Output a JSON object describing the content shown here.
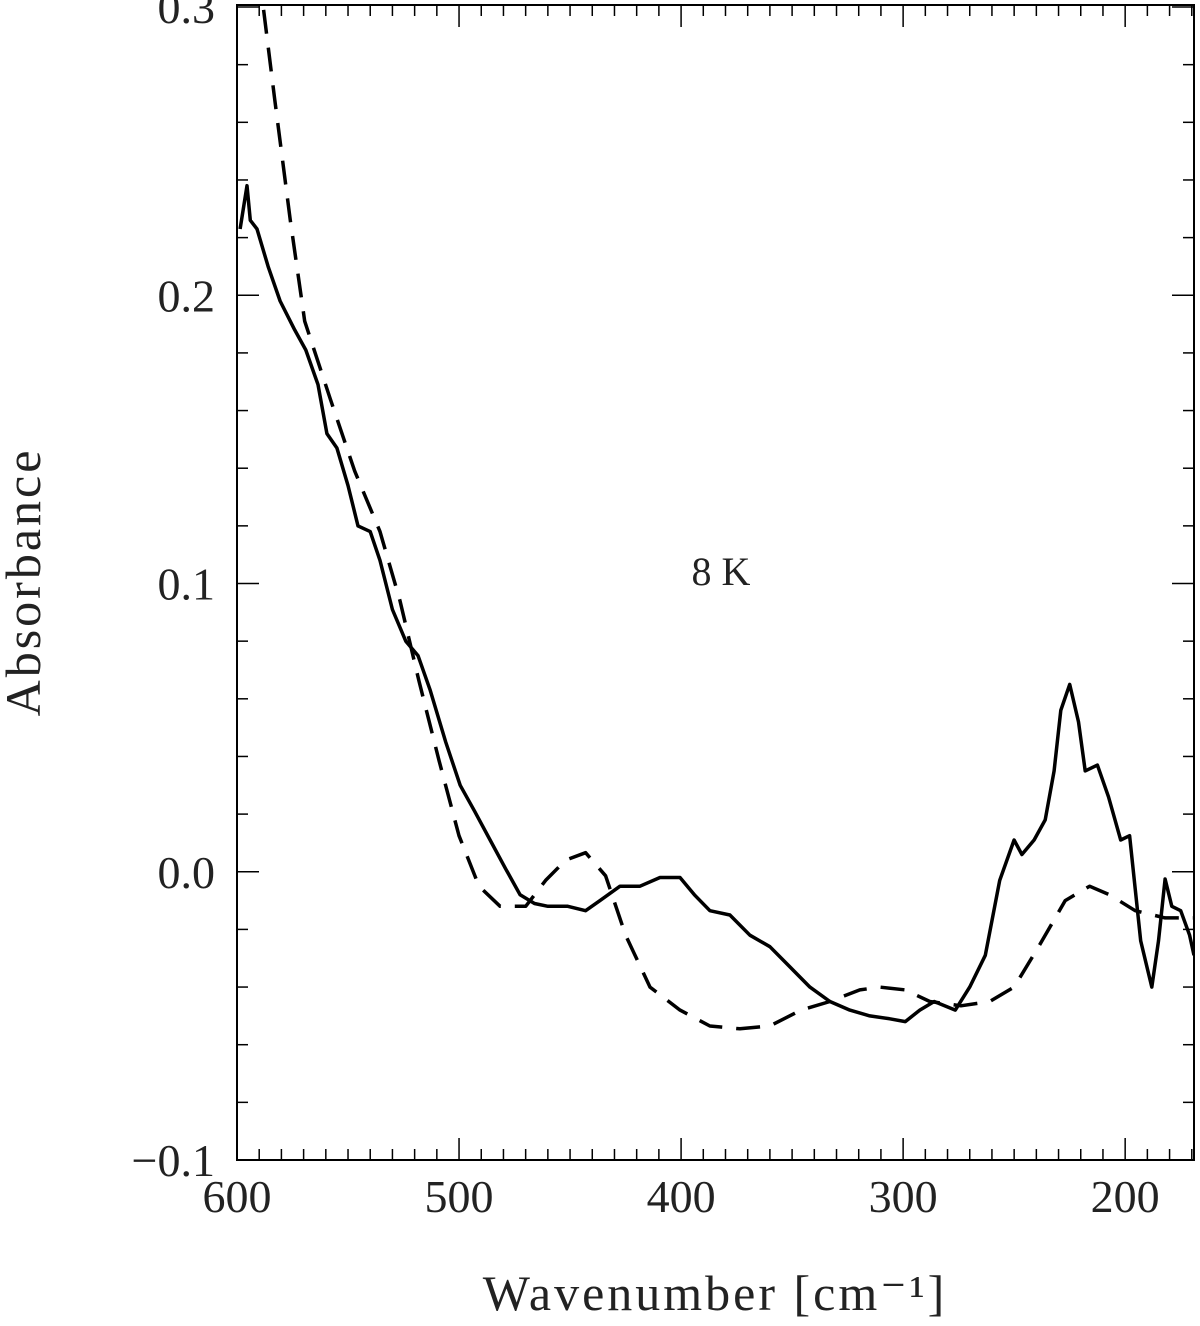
{
  "chart_data": {
    "type": "line",
    "xlabel": "Wavenumber [cm⁻¹]",
    "ylabel": "Absorbance",
    "annotation": "8 K",
    "xlim": [
      600,
      169
    ],
    "ylim": [
      -0.1,
      0.3007
    ],
    "xticks": [
      600,
      500,
      400,
      300,
      200
    ],
    "yticks": [
      {
        "value": -0.1,
        "label": "−0.1"
      },
      {
        "value": 0,
        "label": "0.0"
      },
      0.1,
      0.2,
      0.3
    ],
    "xminorticks": [
      590,
      580,
      570,
      560,
      550,
      540,
      530,
      520,
      510,
      490,
      480,
      470,
      460,
      450,
      440,
      430,
      420,
      410,
      390,
      380,
      370,
      360,
      350,
      340,
      330,
      320,
      310,
      290,
      280,
      270,
      260,
      250,
      240,
      230,
      220,
      210,
      190,
      180,
      170
    ],
    "yminorticks": [
      -0.08,
      -0.06,
      -0.04,
      -0.02,
      0.02,
      0.04,
      0.06,
      0.08,
      0.12,
      0.14,
      0.16,
      0.18,
      0.22,
      0.24,
      0.26,
      0.28
    ],
    "series": [
      {
        "color": "#000000",
        "dash": "solid",
        "x": [
          598.6,
          595.5,
          594,
          591,
          586,
          580.6,
          574,
          569,
          563.5,
          559.5,
          555,
          550,
          545.5,
          540,
          535.6,
          530,
          524,
          518.5,
          513,
          506,
          499.5,
          493,
          486,
          479,
          472.5,
          466,
          460,
          451,
          443,
          436.5,
          427.5,
          418.5,
          409.5,
          400.5,
          394,
          387,
          378,
          369,
          360,
          351,
          342,
          333,
          324,
          315,
          306,
          299,
          292.5,
          286,
          276.5,
          270,
          263,
          256.5,
          250,
          246.5,
          241,
          236,
          232,
          229,
          225,
          221,
          218,
          212.5,
          207.5,
          202,
          198,
          193,
          188,
          185,
          182,
          179,
          175,
          171,
          169
        ],
        "values": [
          0.223,
          0.238,
          0.226,
          0.223,
          0.21,
          0.198,
          0.188,
          0.181,
          0.169,
          0.152,
          0.147,
          0.134,
          0.12,
          0.118,
          0.108,
          0.091,
          0.08,
          0.075,
          0.063,
          0.045,
          0.03,
          0.021,
          0.011,
          0.001,
          -0.008,
          -0.011,
          -0.012,
          -0.012,
          -0.0135,
          -0.01,
          -0.005,
          -0.005,
          -0.002,
          -0.002,
          -0.008,
          -0.0135,
          -0.015,
          -0.022,
          -0.026,
          -0.033,
          -0.04,
          -0.045,
          -0.048,
          -0.05,
          -0.051,
          -0.052,
          -0.048,
          -0.045,
          -0.048,
          -0.04,
          -0.029,
          -0.003,
          0.011,
          0.006,
          0.011,
          0.018,
          0.035,
          0.056,
          0.065,
          0.052,
          0.035,
          0.037,
          0.026,
          0.011,
          0.0125,
          -0.024,
          -0.04,
          -0.024,
          -0.0025,
          -0.012,
          -0.0135,
          -0.022,
          -0.029
        ]
      },
      {
        "color": "#000000",
        "dash": "dashed",
        "x": [
          588,
          583,
          576,
          569.5,
          558,
          547,
          535.6,
          526.6,
          518,
          509,
          500,
          491,
          481.5,
          470,
          461,
          452,
          443,
          434,
          425,
          414,
          400.5,
          387,
          373.5,
          360,
          346,
          333,
          319.5,
          310.5,
          299,
          288,
          274,
          261,
          250,
          239,
          227,
          216,
          207,
          195.5,
          182,
          169
        ],
        "values": [
          0.299,
          0.268,
          0.226,
          0.191,
          0.164,
          0.139,
          0.118,
          0.094,
          0.066,
          0.0385,
          0.0125,
          -0.005,
          -0.012,
          -0.012,
          -0.003,
          0.004,
          0.0066,
          -0.0014,
          -0.022,
          -0.04,
          -0.048,
          -0.0535,
          -0.0545,
          -0.0535,
          -0.048,
          -0.045,
          -0.041,
          -0.04,
          -0.041,
          -0.045,
          -0.0465,
          -0.045,
          -0.04,
          -0.026,
          -0.01,
          -0.005,
          -0.008,
          -0.0135,
          -0.016,
          -0.016
        ]
      }
    ]
  }
}
